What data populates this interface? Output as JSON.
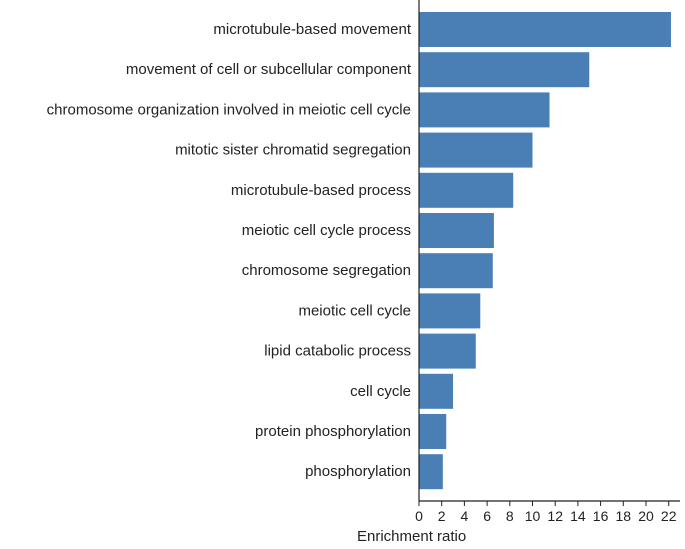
{
  "chart_data": {
    "type": "bar",
    "orientation": "horizontal",
    "categories": [
      "microtubule-based movement",
      "movement of cell or subcellular component",
      "chromosome organization involved in meiotic cell cycle",
      "mitotic sister chromatid segregation",
      "microtubule-based process",
      "meiotic cell cycle process",
      "chromosome segregation",
      "meiotic cell cycle",
      "lipid catabolic process",
      "cell cycle",
      "protein phosphorylation",
      "phosphorylation"
    ],
    "values": [
      22.2,
      15.0,
      11.5,
      10.0,
      8.3,
      6.6,
      6.5,
      5.4,
      5.0,
      3.0,
      2.4,
      2.1
    ],
    "title": "",
    "xlabel": "Enrichment ratio",
    "ylabel": "",
    "xlim": [
      0,
      23
    ],
    "xticks": [
      0,
      2,
      4,
      6,
      8,
      10,
      12,
      14,
      16,
      18,
      20,
      22
    ],
    "bar_color": "#4a7fb5",
    "grid": false,
    "legend": "none"
  }
}
